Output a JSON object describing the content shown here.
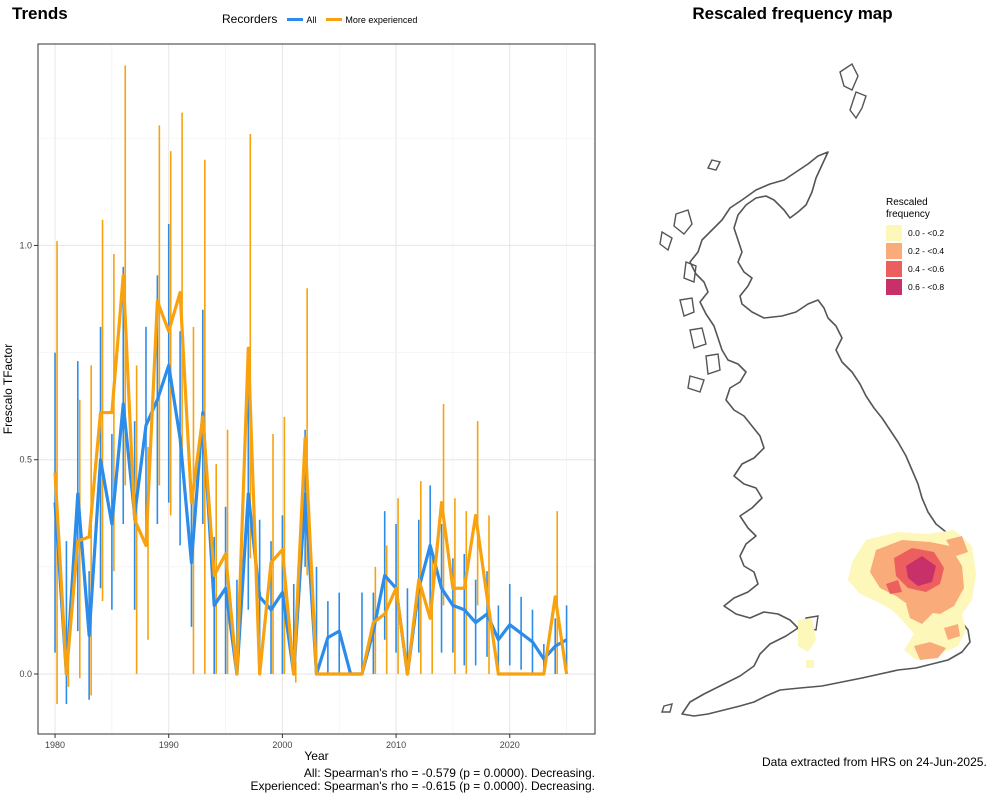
{
  "trends_title": "Trends",
  "map_title": "Rescaled frequency map",
  "legend": {
    "title": "Recorders",
    "all_label": "All",
    "exp_label": "More experienced",
    "all_color": "#2b8cea",
    "exp_color": "#f7a20e"
  },
  "stats": {
    "line1": "All: Spearman's rho = -0.579 (p = 0.0000). Decreasing.",
    "line2": "Experienced: Spearman's rho = -0.615 (p = 0.0000). Decreasing."
  },
  "credit": "Data extracted from HRS on 24-Jun-2025.",
  "map_legend": {
    "title_line1": "Rescaled",
    "title_line2": "frequency",
    "items": [
      {
        "label": "0.0 - <0.2",
        "color": "#fdf7b9"
      },
      {
        "label": "0.2 - <0.4",
        "color": "#f9ab7a"
      },
      {
        "label": "0.4 - <0.6",
        "color": "#ed5f5e"
      },
      {
        "label": "0.6 - <0.8",
        "color": "#c8306a"
      }
    ]
  },
  "chart_data": {
    "type": "line",
    "xlabel": "Year",
    "ylabel": "Frescalo TFactor",
    "xlim": [
      1978.5,
      2027.5
    ],
    "ylim": [
      -0.14,
      1.47
    ],
    "xticks": [
      1980,
      1990,
      2000,
      2010,
      2020
    ],
    "yticks": [
      0.0,
      0.5,
      1.0
    ],
    "ytick_labels": [
      "0.0",
      "0.5",
      "1.0"
    ],
    "grid": true,
    "legend_position": "top",
    "x": [
      1980,
      1981,
      1982,
      1983,
      1984,
      1985,
      1986,
      1987,
      1988,
      1989,
      1990,
      1991,
      1992,
      1993,
      1994,
      1995,
      1996,
      1997,
      1998,
      1999,
      2000,
      2001,
      2002,
      2003,
      2004,
      2005,
      2006,
      2007,
      2008,
      2009,
      2010,
      2011,
      2012,
      2013,
      2014,
      2015,
      2016,
      2017,
      2018,
      2019,
      2020,
      2021,
      2022,
      2023,
      2024,
      2025
    ],
    "series": [
      {
        "name": "All",
        "values": [
          0.4,
          0.0,
          0.42,
          0.09,
          0.5,
          0.35,
          0.63,
          0.37,
          0.58,
          0.64,
          0.72,
          0.55,
          0.26,
          0.61,
          0.16,
          0.2,
          0.0,
          0.42,
          0.18,
          0.15,
          0.19,
          0.0,
          0.42,
          0.0,
          0.085,
          0.1,
          0.0,
          0.0,
          0.1,
          0.23,
          0.2,
          0.0,
          0.2,
          0.3,
          0.2,
          0.16,
          0.15,
          0.12,
          0.14,
          0.08,
          0.115,
          0.095,
          0.075,
          0.035,
          0.065,
          0.08
        ],
        "lower": [
          0.05,
          -0.07,
          0.1,
          -0.06,
          0.2,
          0.15,
          0.35,
          0.15,
          0.3,
          0.35,
          0.4,
          0.3,
          0.11,
          0.35,
          0.0,
          0.0,
          0.0,
          0.15,
          0.0,
          0.0,
          0.0,
          0.0,
          0.25,
          0.0,
          0.0,
          0.0,
          0.0,
          0.0,
          0.0,
          0.08,
          0.05,
          0.0,
          0.05,
          0.15,
          0.05,
          0.05,
          0.02,
          0.02,
          0.04,
          0.0,
          0.02,
          0.01,
          0.0,
          0.0,
          0.0,
          0.0
        ],
        "upper": [
          0.75,
          0.31,
          0.73,
          0.24,
          0.81,
          0.56,
          0.95,
          0.59,
          0.81,
          0.93,
          1.05,
          0.8,
          0.42,
          0.85,
          0.32,
          0.39,
          0.22,
          0.69,
          0.36,
          0.31,
          0.37,
          0.21,
          0.57,
          0.25,
          0.17,
          0.19,
          0.0,
          0.19,
          0.19,
          0.38,
          0.35,
          0.2,
          0.36,
          0.44,
          0.35,
          0.27,
          0.28,
          0.22,
          0.24,
          0.16,
          0.21,
          0.18,
          0.15,
          0.07,
          0.13,
          0.16
        ]
      },
      {
        "name": "More experienced",
        "values": [
          0.47,
          0.0,
          0.31,
          0.32,
          0.61,
          0.61,
          0.93,
          0.36,
          0.3,
          0.87,
          0.8,
          0.89,
          0.4,
          0.6,
          0.23,
          0.28,
          0.0,
          0.76,
          0.0,
          0.26,
          0.29,
          0.0,
          0.55,
          0.0,
          0.0,
          0.0,
          0.0,
          0.0,
          0.12,
          0.14,
          0.2,
          0.0,
          0.22,
          0.13,
          0.4,
          0.2,
          0.2,
          0.37,
          0.18,
          0.0,
          0.0,
          0.0,
          0.0,
          0.0,
          0.18,
          0.0
        ],
        "lower": [
          -0.07,
          -0.03,
          -0.01,
          -0.05,
          0.17,
          0.24,
          0.44,
          0.0,
          0.08,
          0.44,
          0.37,
          0.47,
          0.0,
          0.0,
          0.0,
          0.0,
          0.0,
          0.27,
          0.0,
          0.0,
          0.0,
          -0.02,
          0.23,
          0.0,
          0.0,
          0.0,
          0.0,
          0.0,
          0.0,
          0.0,
          0.0,
          0.0,
          0.0,
          0.0,
          0.16,
          0.0,
          0.0,
          0.16,
          0.0,
          0.0,
          0.0,
          0.0,
          0.0,
          0.0,
          0.0,
          0.0
        ],
        "upper": [
          1.01,
          0.06,
          0.64,
          0.72,
          1.06,
          0.98,
          1.42,
          0.72,
          0.53,
          1.28,
          1.22,
          1.31,
          0.81,
          1.2,
          0.49,
          0.57,
          0.0,
          1.26,
          0.0,
          0.56,
          0.6,
          0.03,
          0.9,
          0.0,
          0.0,
          0.0,
          0.0,
          0.0,
          0.25,
          0.3,
          0.41,
          0.0,
          0.45,
          0.28,
          0.63,
          0.41,
          0.38,
          0.59,
          0.37,
          0.0,
          0.0,
          0.0,
          0.0,
          0.0,
          0.38,
          0.0
        ]
      }
    ]
  }
}
